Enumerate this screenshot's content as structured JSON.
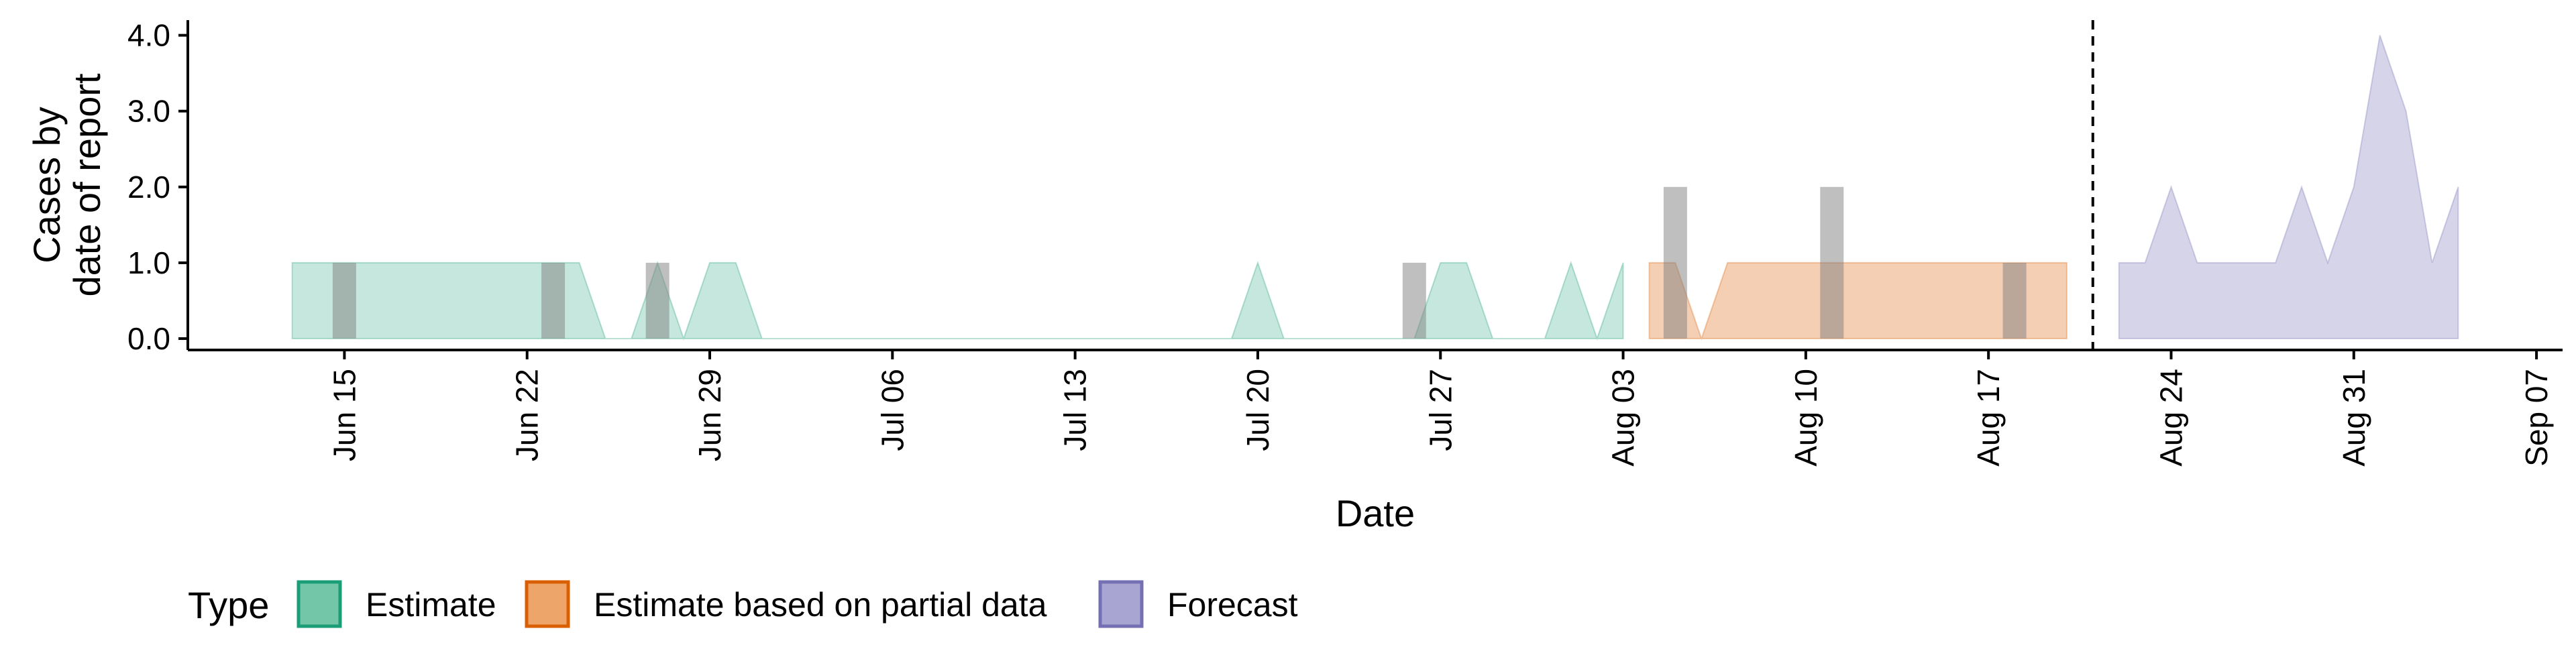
{
  "chart_data": {
    "type": "area",
    "title": "",
    "xlabel": "Date",
    "ylabel": [
      "Cases by",
      "date of report"
    ],
    "x_axis": {
      "type": "date",
      "range": [
        "2024-06-09",
        "2024-09-08"
      ],
      "ticks": [
        {
          "date": "2024-06-15",
          "label": "Jun 15"
        },
        {
          "date": "2024-06-22",
          "label": "Jun 22"
        },
        {
          "date": "2024-06-29",
          "label": "Jun 29"
        },
        {
          "date": "2024-07-06",
          "label": "Jul 06"
        },
        {
          "date": "2024-07-13",
          "label": "Jul 13"
        },
        {
          "date": "2024-07-20",
          "label": "Jul 20"
        },
        {
          "date": "2024-07-27",
          "label": "Jul 27"
        },
        {
          "date": "2024-08-03",
          "label": "Aug 03"
        },
        {
          "date": "2024-08-10",
          "label": "Aug 10"
        },
        {
          "date": "2024-08-17",
          "label": "Aug 17"
        },
        {
          "date": "2024-08-24",
          "label": "Aug 24"
        },
        {
          "date": "2024-08-31",
          "label": "Aug 31"
        },
        {
          "date": "2024-09-07",
          "label": "Sep 07"
        }
      ]
    },
    "y_axis": {
      "range": [
        -0.15,
        4.2
      ],
      "ticks": [
        {
          "value": 0,
          "label": "0.0"
        },
        {
          "value": 1,
          "label": "1.0"
        },
        {
          "value": 2,
          "label": "2.0"
        },
        {
          "value": 3,
          "label": "3.0"
        },
        {
          "value": 4,
          "label": "4.0"
        }
      ]
    },
    "grid": false,
    "legend": {
      "title": "Type",
      "position": "bottom-left",
      "entries": [
        {
          "label": "Estimate",
          "fill": "#74c6a9",
          "stroke": "#1b9e77"
        },
        {
          "label": "Estimate based on partial data",
          "fill": "#eea56a",
          "stroke": "#d95f02"
        },
        {
          "label": "Forecast",
          "fill": "#a9a5d2",
          "stroke": "#7570b3"
        }
      ]
    },
    "cutoff_line": {
      "date": "2024-08-21",
      "style": "dashed"
    },
    "series": [
      {
        "name": "Estimate",
        "color": "#1b9e77",
        "fill_opacity": 0.25,
        "points": [
          [
            "2024-06-13",
            1
          ],
          [
            "2024-06-14",
            1
          ],
          [
            "2024-06-15",
            1
          ],
          [
            "2024-06-16",
            1
          ],
          [
            "2024-06-17",
            1
          ],
          [
            "2024-06-18",
            1
          ],
          [
            "2024-06-19",
            1
          ],
          [
            "2024-06-20",
            1
          ],
          [
            "2024-06-21",
            1
          ],
          [
            "2024-06-22",
            1
          ],
          [
            "2024-06-23",
            1
          ],
          [
            "2024-06-24",
            1
          ],
          [
            "2024-06-25",
            0
          ],
          [
            "2024-06-26",
            0
          ],
          [
            "2024-06-27",
            1
          ],
          [
            "2024-06-28",
            0
          ],
          [
            "2024-06-29",
            1
          ],
          [
            "2024-06-30",
            1
          ],
          [
            "2024-07-01",
            0
          ],
          [
            "2024-07-02",
            0
          ],
          [
            "2024-07-03",
            0
          ],
          [
            "2024-07-04",
            0
          ],
          [
            "2024-07-05",
            0
          ],
          [
            "2024-07-06",
            0
          ],
          [
            "2024-07-07",
            0
          ],
          [
            "2024-07-08",
            0
          ],
          [
            "2024-07-09",
            0
          ],
          [
            "2024-07-10",
            0
          ],
          [
            "2024-07-11",
            0
          ],
          [
            "2024-07-12",
            0
          ],
          [
            "2024-07-13",
            0
          ],
          [
            "2024-07-14",
            0
          ],
          [
            "2024-07-15",
            0
          ],
          [
            "2024-07-16",
            0
          ],
          [
            "2024-07-17",
            0
          ],
          [
            "2024-07-18",
            0
          ],
          [
            "2024-07-19",
            0
          ],
          [
            "2024-07-20",
            1
          ],
          [
            "2024-07-21",
            0
          ],
          [
            "2024-07-22",
            0
          ],
          [
            "2024-07-23",
            0
          ],
          [
            "2024-07-24",
            0
          ],
          [
            "2024-07-25",
            0
          ],
          [
            "2024-07-26",
            0
          ],
          [
            "2024-07-27",
            1
          ],
          [
            "2024-07-28",
            1
          ],
          [
            "2024-07-29",
            0
          ],
          [
            "2024-07-30",
            0
          ],
          [
            "2024-07-31",
            0
          ],
          [
            "2024-08-01",
            1
          ],
          [
            "2024-08-02",
            0
          ],
          [
            "2024-08-03",
            1
          ]
        ]
      },
      {
        "name": "Estimate based on partial data",
        "color": "#d95f02",
        "fill_opacity": 0.3,
        "points": [
          [
            "2024-08-04",
            1
          ],
          [
            "2024-08-05",
            1
          ],
          [
            "2024-08-06",
            0
          ],
          [
            "2024-08-07",
            1
          ],
          [
            "2024-08-08",
            1
          ],
          [
            "2024-08-09",
            1
          ],
          [
            "2024-08-10",
            1
          ],
          [
            "2024-08-11",
            1
          ],
          [
            "2024-08-12",
            1
          ],
          [
            "2024-08-13",
            1
          ],
          [
            "2024-08-14",
            1
          ],
          [
            "2024-08-15",
            1
          ],
          [
            "2024-08-16",
            1
          ],
          [
            "2024-08-17",
            1
          ],
          [
            "2024-08-18",
            1
          ],
          [
            "2024-08-19",
            1
          ],
          [
            "2024-08-20",
            1
          ]
        ]
      },
      {
        "name": "Forecast",
        "color": "#7570b3",
        "fill_opacity": 0.3,
        "points": [
          [
            "2024-08-22",
            1
          ],
          [
            "2024-08-23",
            1
          ],
          [
            "2024-08-24",
            2
          ],
          [
            "2024-08-25",
            1
          ],
          [
            "2024-08-26",
            1
          ],
          [
            "2024-08-27",
            1
          ],
          [
            "2024-08-28",
            1
          ],
          [
            "2024-08-29",
            2
          ],
          [
            "2024-08-30",
            1
          ],
          [
            "2024-08-31",
            2
          ],
          [
            "2024-09-01",
            4
          ],
          [
            "2024-09-02",
            3
          ],
          [
            "2024-09-03",
            1
          ],
          [
            "2024-09-04",
            2
          ]
        ]
      }
    ],
    "reported_cases": {
      "color": "#808080",
      "bars": [
        {
          "date": "2024-06-15",
          "value": 1
        },
        {
          "date": "2024-06-23",
          "value": 1
        },
        {
          "date": "2024-06-27",
          "value": 1
        },
        {
          "date": "2024-07-26",
          "value": 1
        },
        {
          "date": "2024-08-05",
          "value": 2
        },
        {
          "date": "2024-08-11",
          "value": 2
        },
        {
          "date": "2024-08-18",
          "value": 1
        }
      ]
    }
  }
}
